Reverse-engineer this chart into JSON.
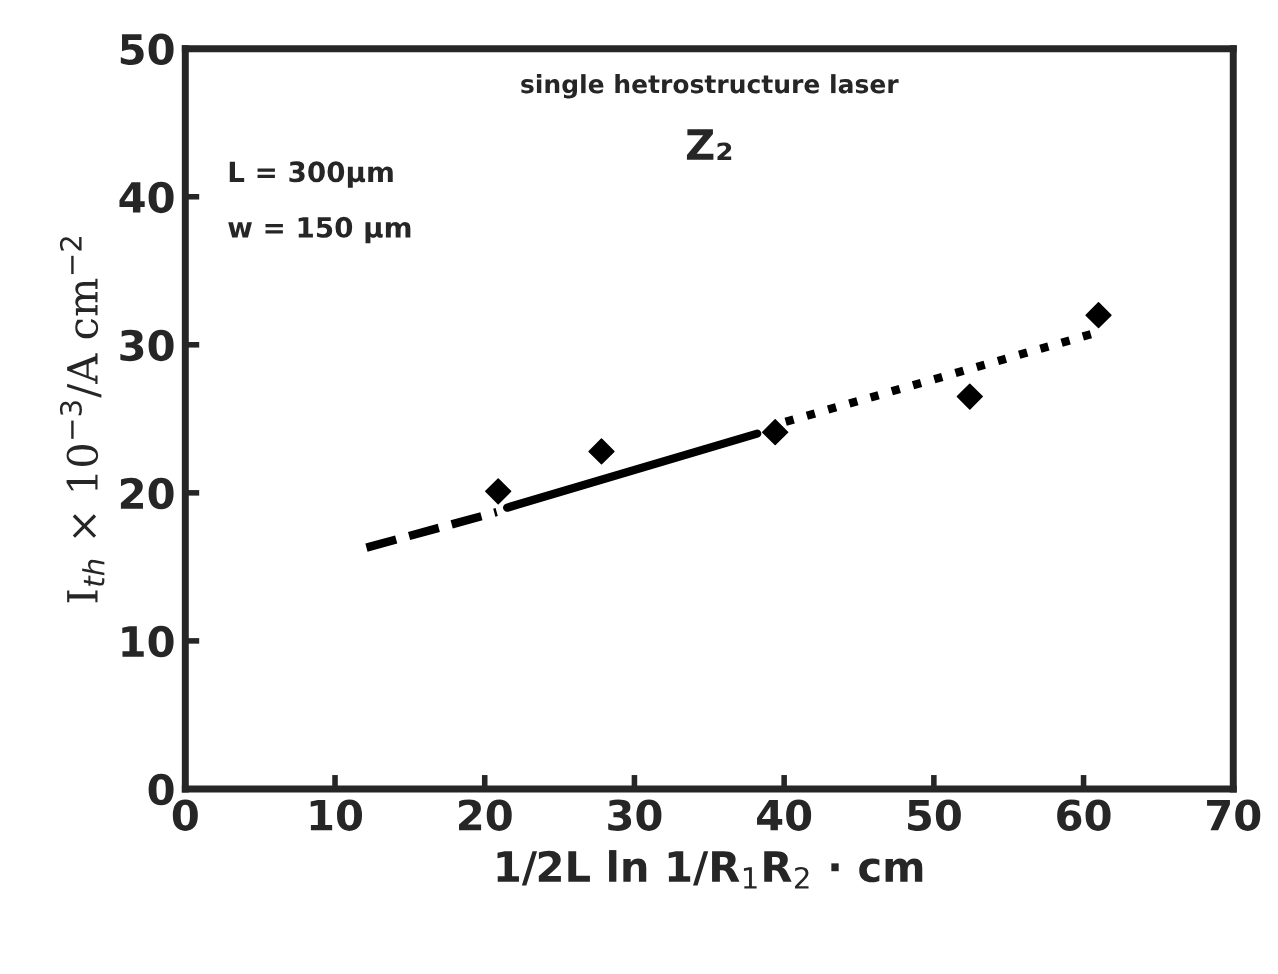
{
  "chart_data": {
    "type": "scatter",
    "title": "single hetrostructure laser",
    "subtitle": "Z₂",
    "annotations": [
      "L = 300µm",
      "w = 150 µm"
    ],
    "xlabel": "1/2L ln 1/R$_{1}$R$_{2}$ · cm",
    "ylabel": "I$_{th}$ × 10$^{−3}$/A cm$^{−2}$",
    "series": [
      {
        "marker": "diamond",
        "color": "#000000",
        "x": [
          20.9,
          27.8,
          39.4,
          52.4,
          61.0
        ],
        "values": [
          20.1,
          22.8,
          24.1,
          26.5,
          32.0
        ]
      },
      {
        "type": "line",
        "line_style": "dashed",
        "color": "#000000",
        "x": [
          12.1,
          20.8
        ],
        "values": [
          16.3,
          18.7
        ]
      },
      {
        "type": "line",
        "line_style": "solid",
        "color": "#000000",
        "x": [
          21.5,
          38.2
        ],
        "values": [
          19.0,
          24.0
        ]
      },
      {
        "type": "line",
        "line_style": "dotted",
        "color": "#000000",
        "x": [
          40.1,
          60.8
        ],
        "values": [
          24.8,
          30.8
        ]
      }
    ],
    "xlim": [
      0,
      70
    ],
    "xticks": [
      0,
      10,
      20,
      30,
      40,
      50,
      60,
      70
    ],
    "ylim": [
      0,
      50
    ],
    "yticks": [
      0,
      10,
      20,
      30,
      40,
      50
    ],
    "grid": false,
    "legend": false
  }
}
